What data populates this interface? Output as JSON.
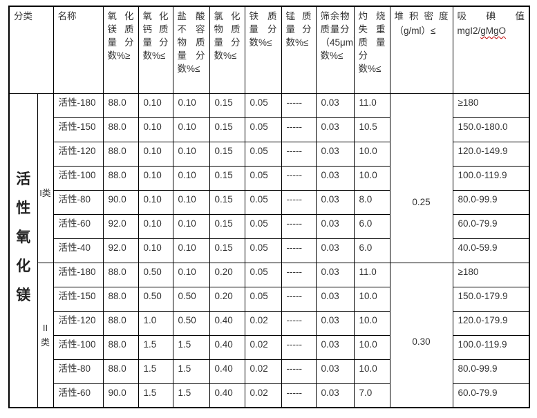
{
  "colors": {
    "background": "#ffffff",
    "border": "#000000",
    "text": "#333333",
    "spellcheck_underline": "#c00000"
  },
  "table": {
    "header": {
      "classification": "分类",
      "name": "名称",
      "spec_columns": [
        {
          "id": "mgo",
          "label": "氧化镁质量分数%≥"
        },
        {
          "id": "cao",
          "label": "氧化钙质量分数%≤"
        },
        {
          "id": "hcl-insoluble",
          "label": "盐酸不容物质量分数%≤"
        },
        {
          "id": "chloride",
          "label": "氯化物质量分数%≤"
        },
        {
          "id": "iron",
          "label": "铁质量分数%≤"
        },
        {
          "id": "manganese",
          "label": "锰质量分数%≤"
        },
        {
          "id": "sieve-residue",
          "label": "筛余物质量分（45μm）数%≤"
        },
        {
          "id": "ignition-loss",
          "label": "灼烧失重质量分数%≤"
        }
      ],
      "bulk_density": {
        "label": "堆积密度",
        "unit": "（g/ml）≤"
      },
      "iodine": {
        "label": "吸碘值",
        "unit_plain": "mgI2/",
        "unit_flagged": "gMgO"
      }
    },
    "category": "活性氧化镁",
    "groups": [
      {
        "class_label": "I类",
        "bulk_density": "0.25",
        "rows": [
          {
            "name": "活性-180",
            "values": [
              "88.0",
              "0.10",
              "0.10",
              "0.15",
              "0.05",
              "-----",
              "0.03",
              "11.0"
            ],
            "iodine": "≥180"
          },
          {
            "name": "活性-150",
            "values": [
              "88.0",
              "0.10",
              "0.10",
              "0.15",
              "0.05",
              "-----",
              "0.03",
              "10.5"
            ],
            "iodine": "150.0-180.0"
          },
          {
            "name": "活性-120",
            "values": [
              "88.0",
              "0.10",
              "0.10",
              "0.15",
              "0.05",
              "-----",
              "0.03",
              "10.0"
            ],
            "iodine": "120.0-149.9"
          },
          {
            "name": "活性-100",
            "values": [
              "88.0",
              "0.10",
              "0.10",
              "0.15",
              "0.05",
              "-----",
              "0.03",
              "10.0"
            ],
            "iodine": "100.0-119.9"
          },
          {
            "name": "活性-80",
            "values": [
              "90.0",
              "0.10",
              "0.10",
              "0.15",
              "0.05",
              "-----",
              "0.03",
              "8.0"
            ],
            "iodine": "80.0-99.9"
          },
          {
            "name": "活性-60",
            "values": [
              "92.0",
              "0.10",
              "0.10",
              "0.15",
              "0.05",
              "-----",
              "0.03",
              "6.0"
            ],
            "iodine": "60.0-79.9"
          },
          {
            "name": "活性-40",
            "values": [
              "92.0",
              "0.10",
              "0.10",
              "0.15",
              "0.05",
              "-----",
              "0.03",
              "6.0"
            ],
            "iodine": "40.0-59.9"
          }
        ]
      },
      {
        "class_label": "II类",
        "bulk_density": "0.30",
        "rows": [
          {
            "name": "活性-180",
            "values": [
              "88.0",
              "0.50",
              "0.10",
              "0.20",
              "0.05",
              "-----",
              "0.03",
              "11.0"
            ],
            "iodine": "≥180"
          },
          {
            "name": "活性-150",
            "values": [
              "88.0",
              "0.50",
              "0.50",
              "0.20",
              "0.05",
              "-----",
              "0.03",
              "10.0"
            ],
            "iodine": "150.0-179.9"
          },
          {
            "name": "活性-120",
            "values": [
              "88.0",
              "1.0",
              "0.50",
              "0.40",
              "0.02",
              "-----",
              "0.03",
              "10.0"
            ],
            "iodine": "120.0-179.9"
          },
          {
            "name": "活性-100",
            "values": [
              "88.0",
              "1.5",
              "1.5",
              "0.40",
              "0.02",
              "-----",
              "0.03",
              "10.0"
            ],
            "iodine": "100.0-119.9"
          },
          {
            "name": "活性-80",
            "values": [
              "88.0",
              "1.5",
              "1.5",
              "0.40",
              "0.02",
              "-----",
              "0.03",
              "10.0"
            ],
            "iodine": "80.0-99.9"
          },
          {
            "name": "活性-60",
            "values": [
              "90.0",
              "1.5",
              "1.5",
              "0.40",
              "0.02",
              "-----",
              "0.03",
              "7.0"
            ],
            "iodine": "60.0-79.9"
          }
        ]
      }
    ]
  }
}
